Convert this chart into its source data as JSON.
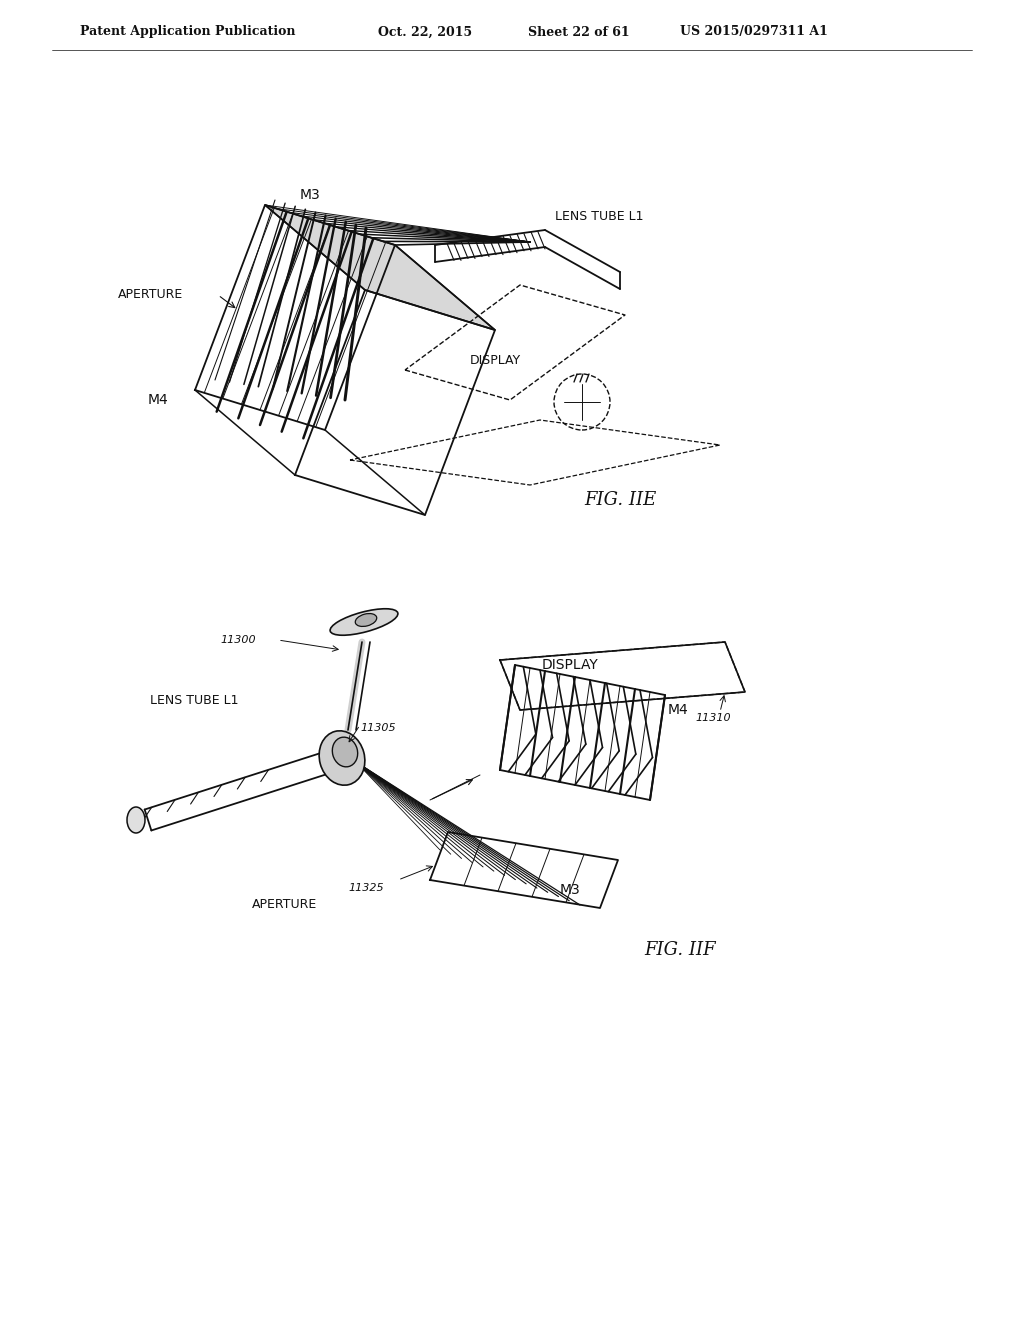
{
  "bg_color": "#ffffff",
  "header_left": "Patent Application Publication",
  "header_mid1": "Oct. 22, 2015",
  "header_mid2": "Sheet 22 of 61",
  "header_right": "US 2015/0297311 A1",
  "fig1_caption": "FIG. IIE",
  "fig2_caption": "FIG. IIF",
  "lc": "#111111"
}
